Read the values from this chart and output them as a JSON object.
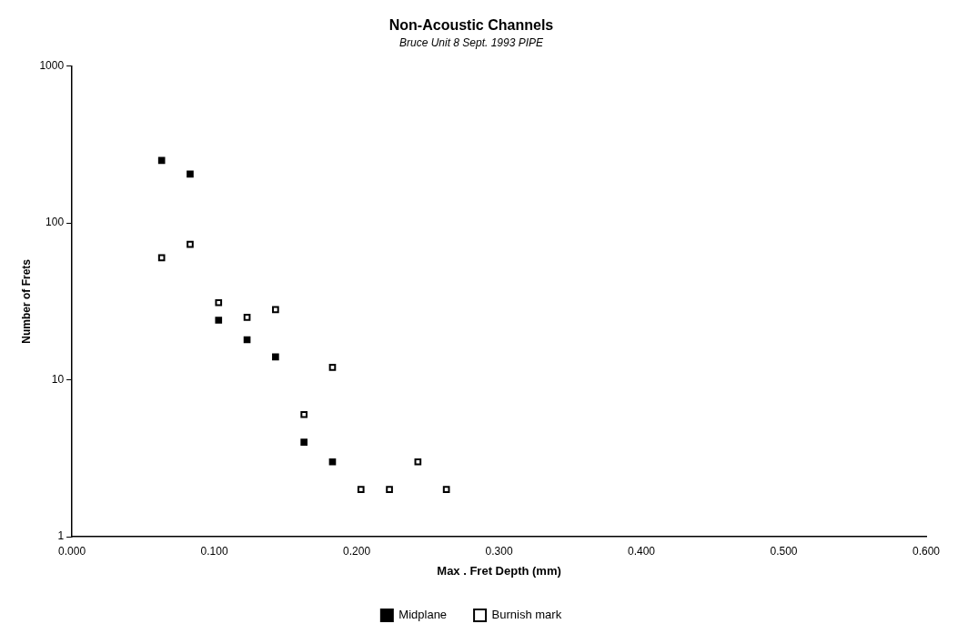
{
  "chart_data": {
    "type": "scatter",
    "title": "Non-Acoustic Channels",
    "subtitle": "Bruce Unit 8 Sept. 1993 PIPE",
    "xlabel": "Max . Fret Depth (mm)",
    "ylabel": "Number of Frets",
    "series": [
      {
        "name": "Midplane",
        "color": "#000000",
        "x": [
          0.063,
          0.083,
          0.103,
          0.123,
          0.143,
          0.163,
          0.183
        ],
        "values": [
          250,
          205,
          24,
          18,
          14,
          4,
          3
        ]
      },
      {
        "name": "Burnish mark",
        "color": "#ffffff",
        "x": [
          0.063,
          0.083,
          0.103,
          0.123,
          0.143,
          0.163,
          0.183,
          0.203,
          0.223,
          0.243,
          0.263
        ],
        "values": [
          60,
          73,
          31,
          25,
          28,
          6,
          12,
          2,
          2,
          3,
          2
        ]
      }
    ],
    "xlim": [
      0,
      0.6
    ],
    "xticks": [
      {
        "value": 0,
        "label": "0.000"
      },
      {
        "value": 0.1,
        "label": "0.100"
      },
      {
        "value": 0.2,
        "label": "0.200"
      },
      {
        "value": 0.3,
        "label": "0.300"
      },
      {
        "value": 0.4,
        "label": "0.400"
      },
      {
        "value": 0.5,
        "label": "0.500"
      },
      {
        "value": 0.6,
        "label": "0.600"
      }
    ],
    "ylim": [
      1,
      1000
    ],
    "yticks": [
      1,
      10,
      100,
      1000
    ],
    "log": "y",
    "grid": false,
    "legend": "bottom",
    "marker": "square"
  }
}
